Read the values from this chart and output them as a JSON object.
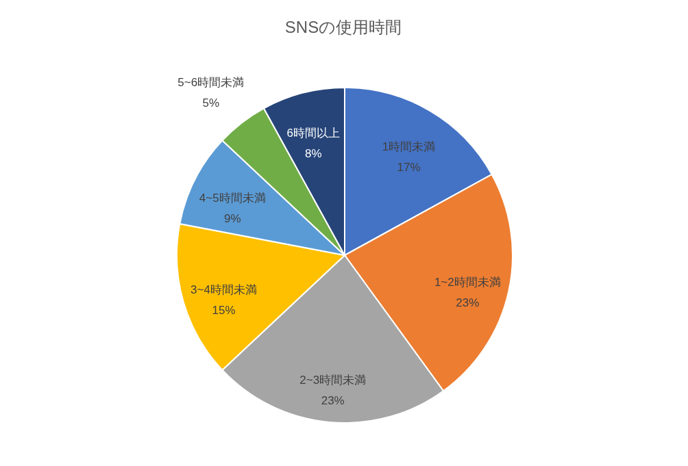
{
  "chart_data": {
    "type": "pie",
    "title": "SNSの使用時間",
    "categories": [
      "1時間未満",
      "1~2時間未満",
      "2~3時間未満",
      "3~4時間未満",
      "4~5時間未満",
      "5~6時間未満",
      "6時間以上"
    ],
    "values": [
      17,
      23,
      23,
      15,
      9,
      5,
      8
    ],
    "value_labels": [
      "17%",
      "23%",
      "23%",
      "15%",
      "9%",
      "5%",
      "8%"
    ],
    "colors": [
      "#4472c4",
      "#ed7d31",
      "#a5a5a5",
      "#ffc000",
      "#5b9bd5",
      "#70ad47",
      "#264478"
    ],
    "legend": false
  }
}
